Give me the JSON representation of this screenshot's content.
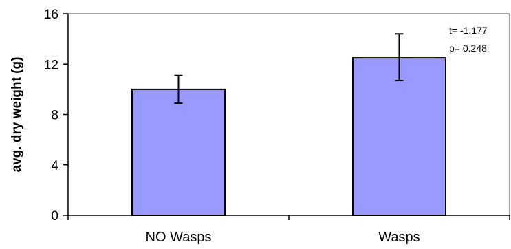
{
  "chart_data": {
    "type": "bar",
    "title": "",
    "xlabel": "",
    "ylabel": "avg. dry weight (g)",
    "ylim": [
      0,
      16
    ],
    "yticks": [
      0,
      4,
      8,
      12,
      16
    ],
    "categories": [
      "NO Wasps",
      "Wasps"
    ],
    "values": [
      10.0,
      12.5
    ],
    "error_low": [
      8.9,
      10.7
    ],
    "error_high": [
      11.1,
      14.4
    ],
    "grid": false,
    "bar_color": "#9999ff",
    "bar_edge_color": "#000000",
    "annotations": [
      "t= -1.177",
      "p= 0.248"
    ]
  }
}
